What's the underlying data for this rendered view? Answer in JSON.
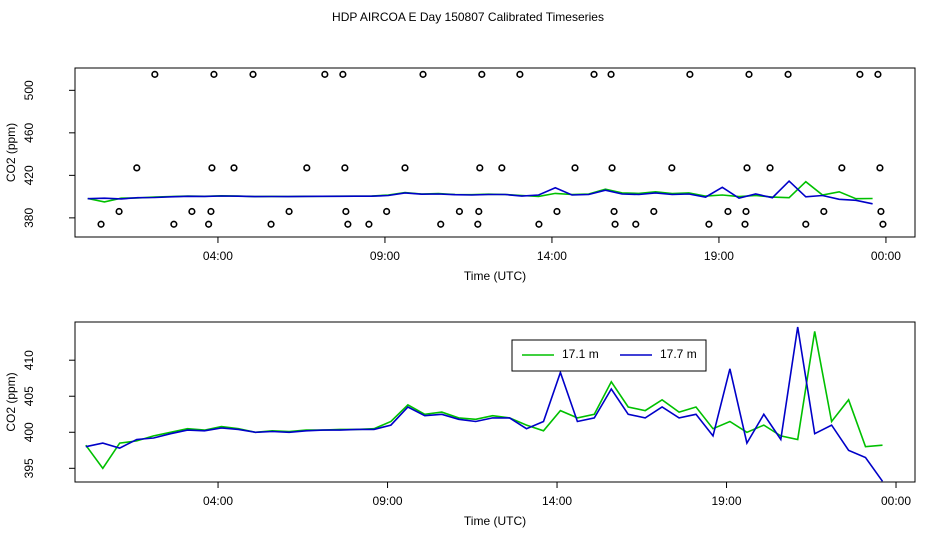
{
  "chart_data": [
    {
      "type": "scatter",
      "title": "HDP AIRCOA E  Day 150807  Calibrated Timeseries",
      "xlabel": "Time (UTC)",
      "ylabel": "CO2 (ppm)",
      "xlim": [
        -0.28,
        24.87
      ],
      "ylim": [
        362,
        521
      ],
      "xticks": [
        {
          "value": 4,
          "label": "04:00"
        },
        {
          "value": 9,
          "label": "09:00"
        },
        {
          "value": 14,
          "label": "14:00"
        },
        {
          "value": 19,
          "label": "19:00"
        },
        {
          "value": 24,
          "label": "00:00"
        }
      ],
      "yticks": [
        380,
        420,
        460,
        500
      ],
      "color": "#000000",
      "x": [
        2.11,
        3.88,
        5.05,
        7.2,
        7.74,
        10.14,
        11.9,
        13.04,
        15.26,
        15.77,
        18.13,
        19.9,
        21.07,
        23.22,
        23.76,
        1.57,
        3.82,
        4.48,
        6.66,
        7.8,
        9.6,
        11.84,
        12.5,
        14.69,
        15.8,
        17.59,
        19.84,
        20.53,
        22.68,
        23.82,
        1.04,
        3.22,
        3.79,
        6.13,
        7.83,
        9.05,
        11.23,
        11.81,
        14.15,
        15.86,
        17.05,
        19.27,
        19.81,
        22.14,
        23.85,
        0.5,
        2.68,
        3.72,
        5.59,
        7.89,
        8.52,
        10.67,
        11.78,
        13.61,
        15.89,
        16.51,
        18.7,
        19.78,
        21.6,
        23.91
      ],
      "values": [
        515,
        515,
        515,
        515,
        515,
        515,
        515,
        515,
        515,
        515,
        515,
        515,
        515,
        515,
        515,
        427,
        427,
        427,
        427,
        427,
        427,
        427,
        427,
        427,
        427,
        427,
        427,
        427,
        427,
        427,
        386,
        386,
        386,
        386,
        386,
        386,
        386,
        386,
        386,
        386,
        386,
        386,
        386,
        386,
        386,
        374,
        374,
        374,
        374,
        374,
        374,
        374,
        374,
        374,
        374,
        374,
        374,
        374,
        374,
        374
      ]
    },
    {
      "type": "line",
      "xlabel": "Time (UTC)",
      "ylabel": "CO2 (ppm)",
      "xlim": [
        -0.22,
        24.56
      ],
      "ylim": [
        393.1,
        415.3
      ],
      "xticks": [
        {
          "value": 4,
          "label": "04:00"
        },
        {
          "value": 9,
          "label": "09:00"
        },
        {
          "value": 14,
          "label": "14:00"
        },
        {
          "value": 19,
          "label": "19:00"
        },
        {
          "value": 24,
          "label": "00:00"
        }
      ],
      "yticks": [
        395,
        400,
        405,
        410
      ],
      "x": [
        0.1,
        0.6,
        1.1,
        1.6,
        2.1,
        2.6,
        3.1,
        3.6,
        4.1,
        4.6,
        5.1,
        5.6,
        6.1,
        6.6,
        7.1,
        7.6,
        8.1,
        8.6,
        9.1,
        9.6,
        10.1,
        10.6,
        11.1,
        11.6,
        12.1,
        12.6,
        13.1,
        13.6,
        14.1,
        14.6,
        15.1,
        15.6,
        16.1,
        16.6,
        17.1,
        17.6,
        18.1,
        18.6,
        19.1,
        19.6,
        20.1,
        20.6,
        21.1,
        21.6,
        22.1,
        22.6,
        23.1,
        23.6
      ],
      "series": [
        {
          "name": "17.1 m",
          "color": "#00c000",
          "values": [
            398.2,
            395.0,
            398.5,
            398.8,
            399.5,
            400.0,
            400.5,
            400.3,
            400.8,
            400.5,
            400.0,
            400.2,
            400.1,
            400.3,
            400.3,
            400.4,
            400.4,
            400.5,
            401.5,
            403.8,
            402.5,
            402.8,
            402.0,
            401.8,
            402.3,
            402.0,
            401.0,
            400.2,
            403.0,
            402.0,
            402.5,
            407.0,
            403.5,
            403.0,
            404.5,
            402.8,
            403.5,
            400.5,
            401.5,
            400.0,
            401.0,
            399.5,
            399.0,
            414.0,
            401.5,
            404.5,
            398.0,
            398.2
          ]
        },
        {
          "name": "17.7 m",
          "color": "#0000c8",
          "values": [
            398.0,
            398.5,
            397.8,
            399.0,
            399.2,
            399.8,
            400.3,
            400.2,
            400.6,
            400.4,
            400.0,
            400.1,
            400.0,
            400.2,
            400.3,
            400.3,
            400.4,
            400.4,
            401.0,
            403.5,
            402.3,
            402.5,
            401.8,
            401.5,
            402.0,
            402.0,
            400.5,
            401.5,
            408.3,
            401.5,
            402.0,
            406.0,
            402.5,
            402.0,
            403.5,
            402.0,
            402.5,
            399.5,
            408.8,
            398.5,
            402.5,
            399.0,
            414.6,
            399.8,
            401.0,
            397.5,
            396.5,
            393.2
          ]
        }
      ]
    }
  ]
}
